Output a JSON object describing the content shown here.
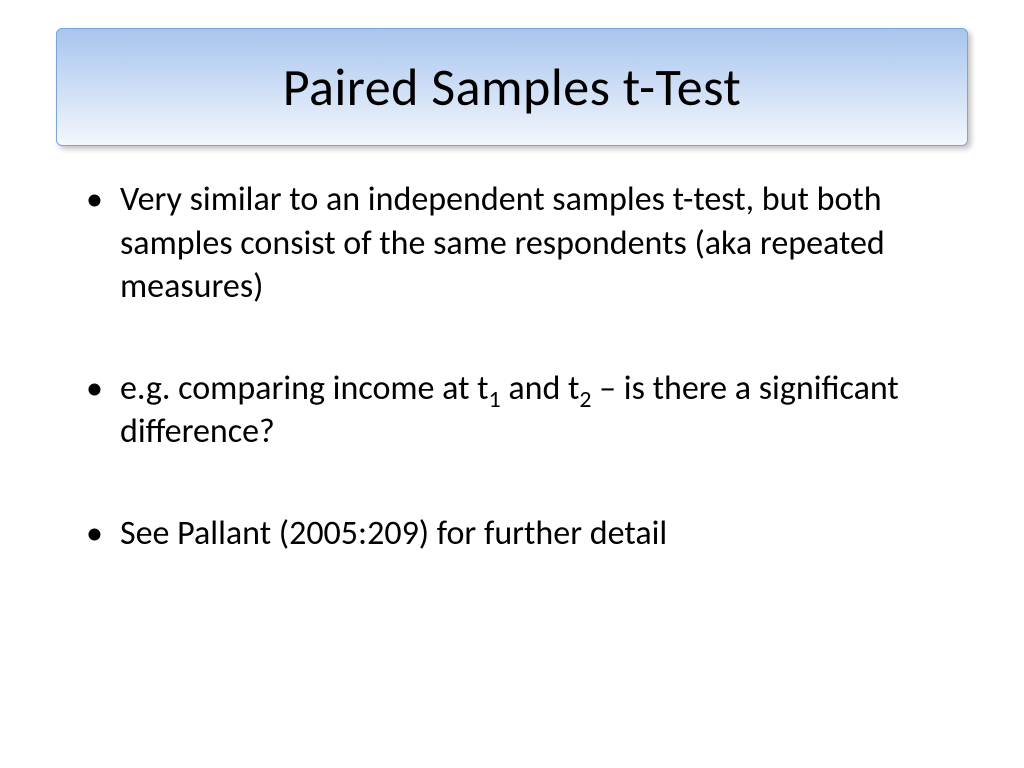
{
  "slide": {
    "title": "Paired Samples t-Test",
    "title_style": {
      "gradient_top": "#a7c5ee",
      "gradient_bottom": "#f3f7fd",
      "border_color": "#7ba4db",
      "text_color": "#000000",
      "font_size_pt": 40
    },
    "body_style": {
      "text_color": "#000000",
      "font_size_pt": 26,
      "bullet_color": "#000000"
    },
    "bullets": [
      {
        "type": "plain",
        "text": "Very similar to an independent samples t-test, but both samples consist of the same respondents (aka repeated measures)"
      },
      {
        "type": "with_subscripts",
        "prefix": "e.g. comparing income at t",
        "sub1": "1",
        "mid": " and t",
        "sub2": "2",
        "suffix": " – is there a significant difference?"
      },
      {
        "type": "plain",
        "text": "See Pallant (2005:209) for further detail"
      }
    ],
    "background_color": "#ffffff"
  }
}
